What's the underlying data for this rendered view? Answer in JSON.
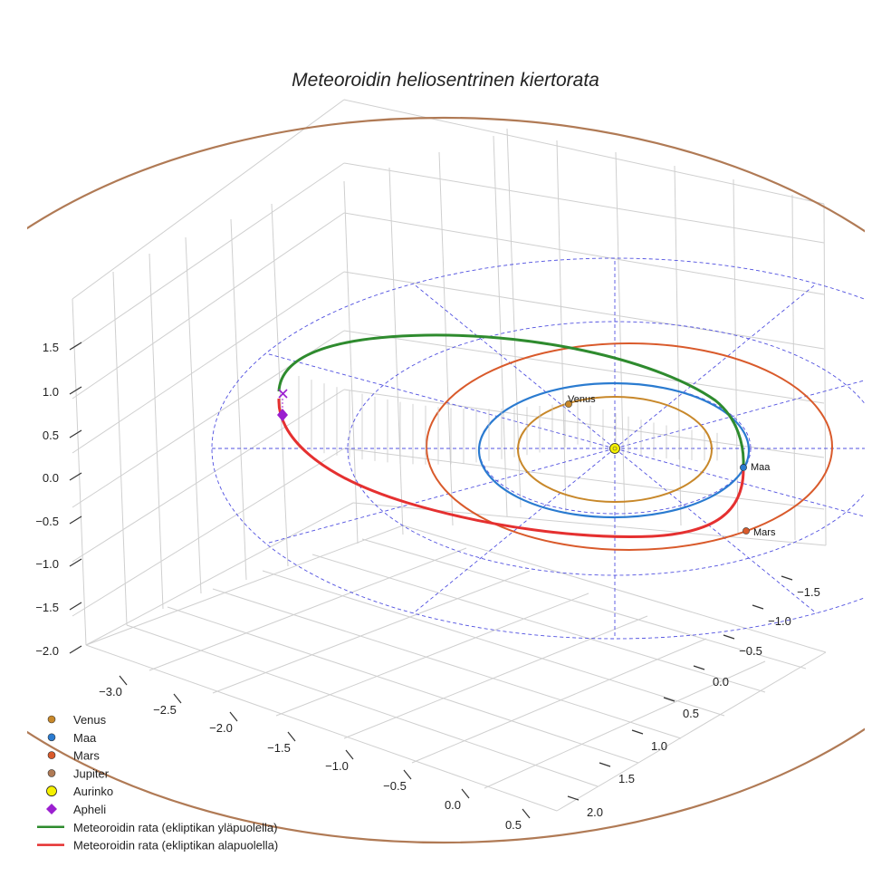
{
  "chart_data": {
    "type": "line3d",
    "title": "Meteoroidin heliosentrinen kiertorata",
    "axes": {
      "x": {
        "ticks": [
          -3.0,
          -2.5,
          -2.0,
          -1.5,
          -1.0,
          -0.5,
          0.0,
          0.5
        ],
        "tick_labels": [
          "−3.0",
          "−2.5",
          "−2.0",
          "−1.5",
          "−1.0",
          "−0.5",
          "0.0",
          "0.5"
        ]
      },
      "y": {
        "ticks": [
          -1.5,
          -1.0,
          -0.5,
          0.0,
          0.5,
          1.0,
          1.5,
          2.0
        ],
        "tick_labels": [
          "−1.5",
          "−1.0",
          "−0.5",
          "0.0",
          "0.5",
          "1.0",
          "1.5",
          "2.0"
        ]
      },
      "z": {
        "ticks": [
          -2.0,
          -1.5,
          -1.0,
          -0.5,
          0.0,
          0.5,
          1.0,
          1.5
        ],
        "tick_labels": [
          "−2.0",
          "−1.5",
          "−1.0",
          "−0.5",
          "0.0",
          "0.5",
          "1.0",
          "1.5"
        ]
      }
    },
    "grid": true,
    "legend_position": "bottom-left",
    "orbit_radii_au": {
      "Venus": 0.72,
      "Maa": 1.0,
      "Mars": 1.52,
      "Jupiter": 5.2
    },
    "colors": {
      "venus": "#c8882a",
      "maa": "#2a7bd0",
      "mars": "#d95a2b",
      "jupiter": "#b07a55",
      "aurinko": "#f5f000",
      "apheli": "#9b1fd0",
      "above": "#2e8b2e",
      "below": "#e53030",
      "ecliptic": "#5050e0"
    },
    "series": [
      {
        "name": "Venus",
        "marker": "dot",
        "color": "#c8882a"
      },
      {
        "name": "Maa",
        "marker": "dot",
        "color": "#2a7bd0"
      },
      {
        "name": "Mars",
        "marker": "dot",
        "color": "#d95a2b"
      },
      {
        "name": "Jupiter",
        "marker": "dot",
        "color": "#b07a55"
      },
      {
        "name": "Aurinko",
        "marker": "sun",
        "color": "#f5f000"
      },
      {
        "name": "Apheli",
        "marker": "diamond",
        "color": "#9b1fd0"
      },
      {
        "name": "Meteoroidin rata (ekliptikan yläpuolella)",
        "marker": "line",
        "color": "#2e8b2e"
      },
      {
        "name": "Meteoroidin rata (ekliptikan alapuolella)",
        "marker": "line",
        "color": "#e53030"
      }
    ],
    "planet_labels": {
      "venus": "Venus",
      "maa": "Maa",
      "mars": "Mars"
    }
  }
}
